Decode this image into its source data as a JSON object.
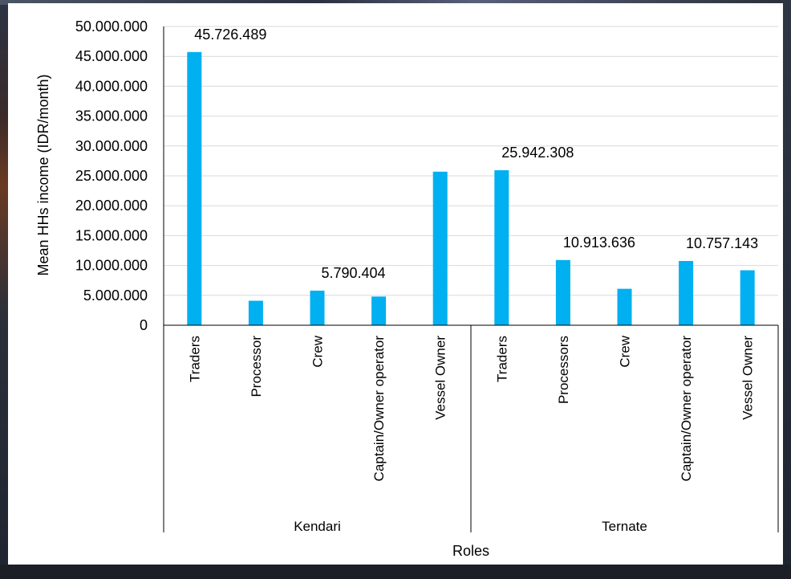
{
  "chart_data": {
    "type": "bar",
    "ylabel": "Mean HHs income  (IDR/month)",
    "xlabel": "Roles",
    "ylim": [
      0,
      50000000
    ],
    "yticks": [
      0,
      5000000,
      10000000,
      15000000,
      20000000,
      25000000,
      30000000,
      35000000,
      40000000,
      45000000,
      50000000
    ],
    "ytick_labels": [
      "0",
      "5.000.000",
      "10.000.000",
      "15.000.000",
      "20.000.000",
      "25.000.000",
      "30.000.000",
      "35.000.000",
      "40.000.000",
      "45.000.000",
      "50.000.000"
    ],
    "grid": true,
    "bar_color": "#00B0F0",
    "groups": [
      {
        "name": "Kendari",
        "categories": [
          "Traders",
          "Processor",
          "Crew",
          "Captain/Owner operator",
          "Vessel Owner"
        ],
        "values": [
          45726489,
          4100000,
          5790404,
          4800000,
          25700000
        ],
        "data_labels": [
          "45.726.489",
          "",
          "5.790.404",
          "",
          ""
        ]
      },
      {
        "name": "Ternate",
        "categories": [
          "Traders",
          "Processors",
          "Crew",
          "Captain/Owner operator",
          "Vessel Owner"
        ],
        "values": [
          25942308,
          10913636,
          6100000,
          10757143,
          9200000
        ],
        "data_labels": [
          "25.942.308",
          "10.913.636",
          "",
          "10.757.143",
          ""
        ]
      }
    ]
  }
}
